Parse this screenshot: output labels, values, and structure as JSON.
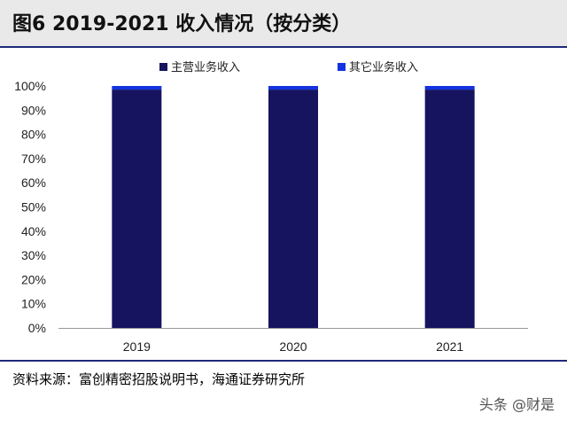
{
  "figure": {
    "title": "图6   2019-2021 收入情况（按分类）",
    "source": "资料来源：富创精密招股说明书，海通证券研究所",
    "watermark": "头条 @财是"
  },
  "chart_data": {
    "type": "bar",
    "stacked": true,
    "categories": [
      "2019",
      "2020",
      "2021"
    ],
    "series": [
      {
        "name": "主营业务收入",
        "values": [
          98.5,
          98.5,
          98.5
        ],
        "color": "#16145e"
      },
      {
        "name": "其它业务收入",
        "values": [
          1.5,
          1.5,
          1.5
        ],
        "color": "#1433e0"
      }
    ],
    "ylim": [
      0,
      100
    ],
    "yticks": [
      "0%",
      "10%",
      "20%",
      "30%",
      "40%",
      "50%",
      "60%",
      "70%",
      "80%",
      "90%",
      "100%"
    ],
    "grid": false,
    "legend_position": "top"
  }
}
